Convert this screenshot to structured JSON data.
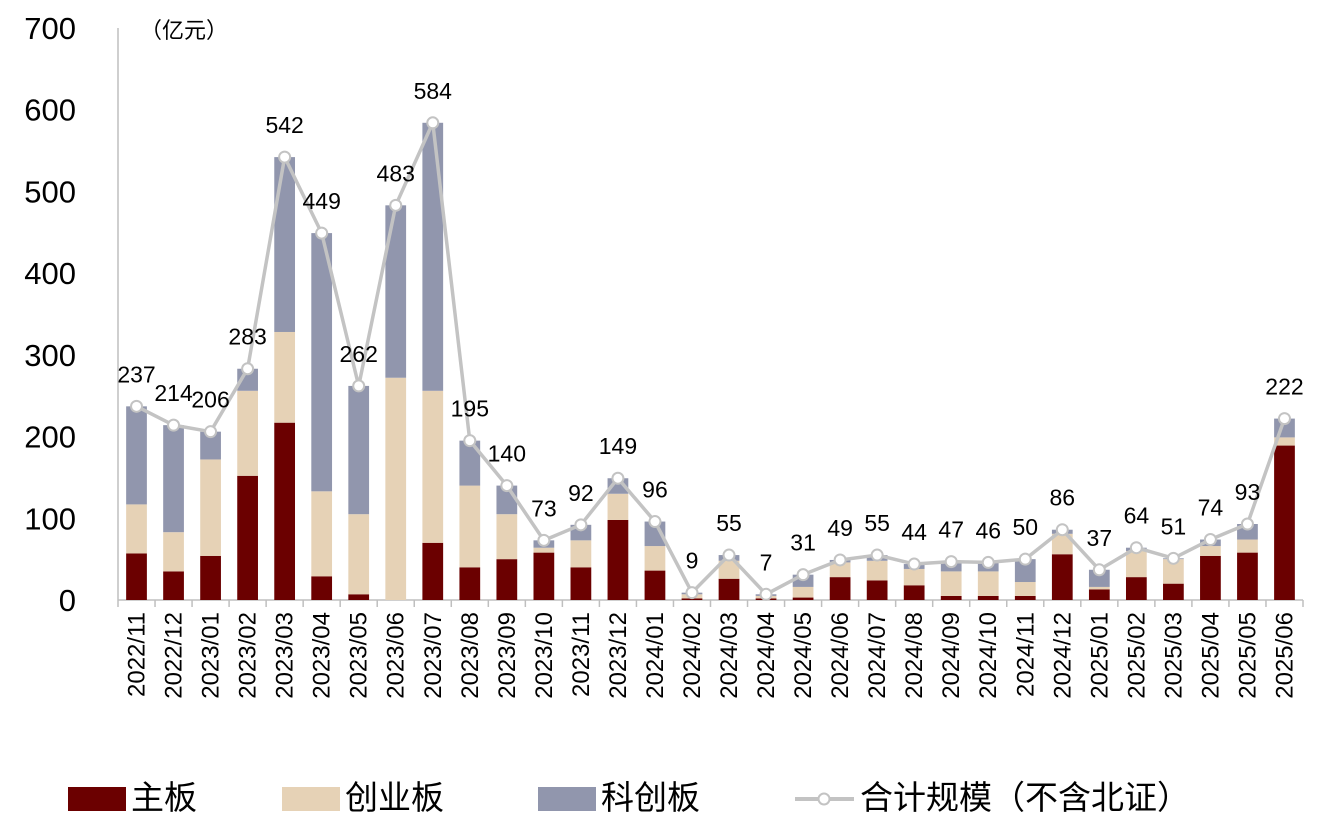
{
  "chart_data": {
    "type": "bar",
    "subtype": "stacked-bar-with-line",
    "unit_label": "（亿元）",
    "ylim": [
      0,
      700
    ],
    "yticks": [
      "0",
      "100",
      "200",
      "300",
      "400",
      "500",
      "600",
      "700"
    ],
    "categories": [
      "2022/11",
      "2022/12",
      "2023/01",
      "2023/02",
      "2023/03",
      "2023/04",
      "2023/05",
      "2023/06",
      "2023/07",
      "2023/08",
      "2023/09",
      "2023/10",
      "2023/11",
      "2023/12",
      "2024/01",
      "2024/02",
      "2024/03",
      "2024/04",
      "2024/05",
      "2024/06",
      "2024/07",
      "2024/08",
      "2024/09",
      "2024/10",
      "2024/11",
      "2024/12",
      "2025/01",
      "2025/02",
      "2025/03",
      "2025/04",
      "2025/05",
      "2025/06"
    ],
    "series": [
      {
        "name": "主板",
        "type": "bar",
        "color": "#6b0000",
        "values": [
          57,
          35,
          54,
          152,
          217,
          29,
          7,
          0,
          70,
          40,
          50,
          58,
          40,
          98,
          36,
          2,
          26,
          2,
          3,
          28,
          24,
          18,
          5,
          5,
          5,
          56,
          13,
          28,
          20,
          54,
          58,
          189
        ]
      },
      {
        "name": "创业板",
        "type": "bar",
        "color": "#e6d2b6",
        "values": [
          60,
          48,
          118,
          104,
          111,
          104,
          98,
          272,
          186,
          100,
          55,
          6,
          33,
          32,
          30,
          5,
          22,
          3,
          13,
          18,
          24,
          20,
          30,
          30,
          17,
          25,
          3,
          32,
          30,
          12,
          16,
          10
        ]
      },
      {
        "name": "科创板",
        "type": "bar",
        "color": "#9196ad",
        "values": [
          120,
          131,
          34,
          27,
          214,
          316,
          157,
          211,
          328,
          55,
          35,
          9,
          19,
          19,
          30,
          2,
          7,
          2,
          15,
          3,
          7,
          6,
          12,
          11,
          28,
          5,
          21,
          4,
          1,
          8,
          19,
          23
        ]
      },
      {
        "name": "合计规模（不含北证）",
        "type": "line",
        "color": "#c3c3c3",
        "values": [
          237,
          214,
          206,
          283,
          542,
          449,
          262,
          483,
          584,
          195,
          140,
          73,
          92,
          149,
          96,
          9,
          55,
          7,
          31,
          49,
          55,
          44,
          47,
          46,
          50,
          86,
          37,
          64,
          51,
          74,
          93,
          222
        ]
      }
    ],
    "data_labels": [
      "237",
      "214",
      "206",
      "283",
      "542",
      "449",
      "262",
      "483",
      "584",
      "195",
      "140",
      "73",
      "92",
      "149",
      "96",
      "9",
      "55",
      "7",
      "31",
      "49",
      "55",
      "44",
      "47",
      "46",
      "50",
      "86",
      "37",
      "64",
      "51",
      "74",
      "93",
      "222"
    ],
    "legend": [
      "主板",
      "创业板",
      "科创板",
      "合计规模（不含北证）"
    ],
    "legend_position": "bottom",
    "grid": false
  }
}
